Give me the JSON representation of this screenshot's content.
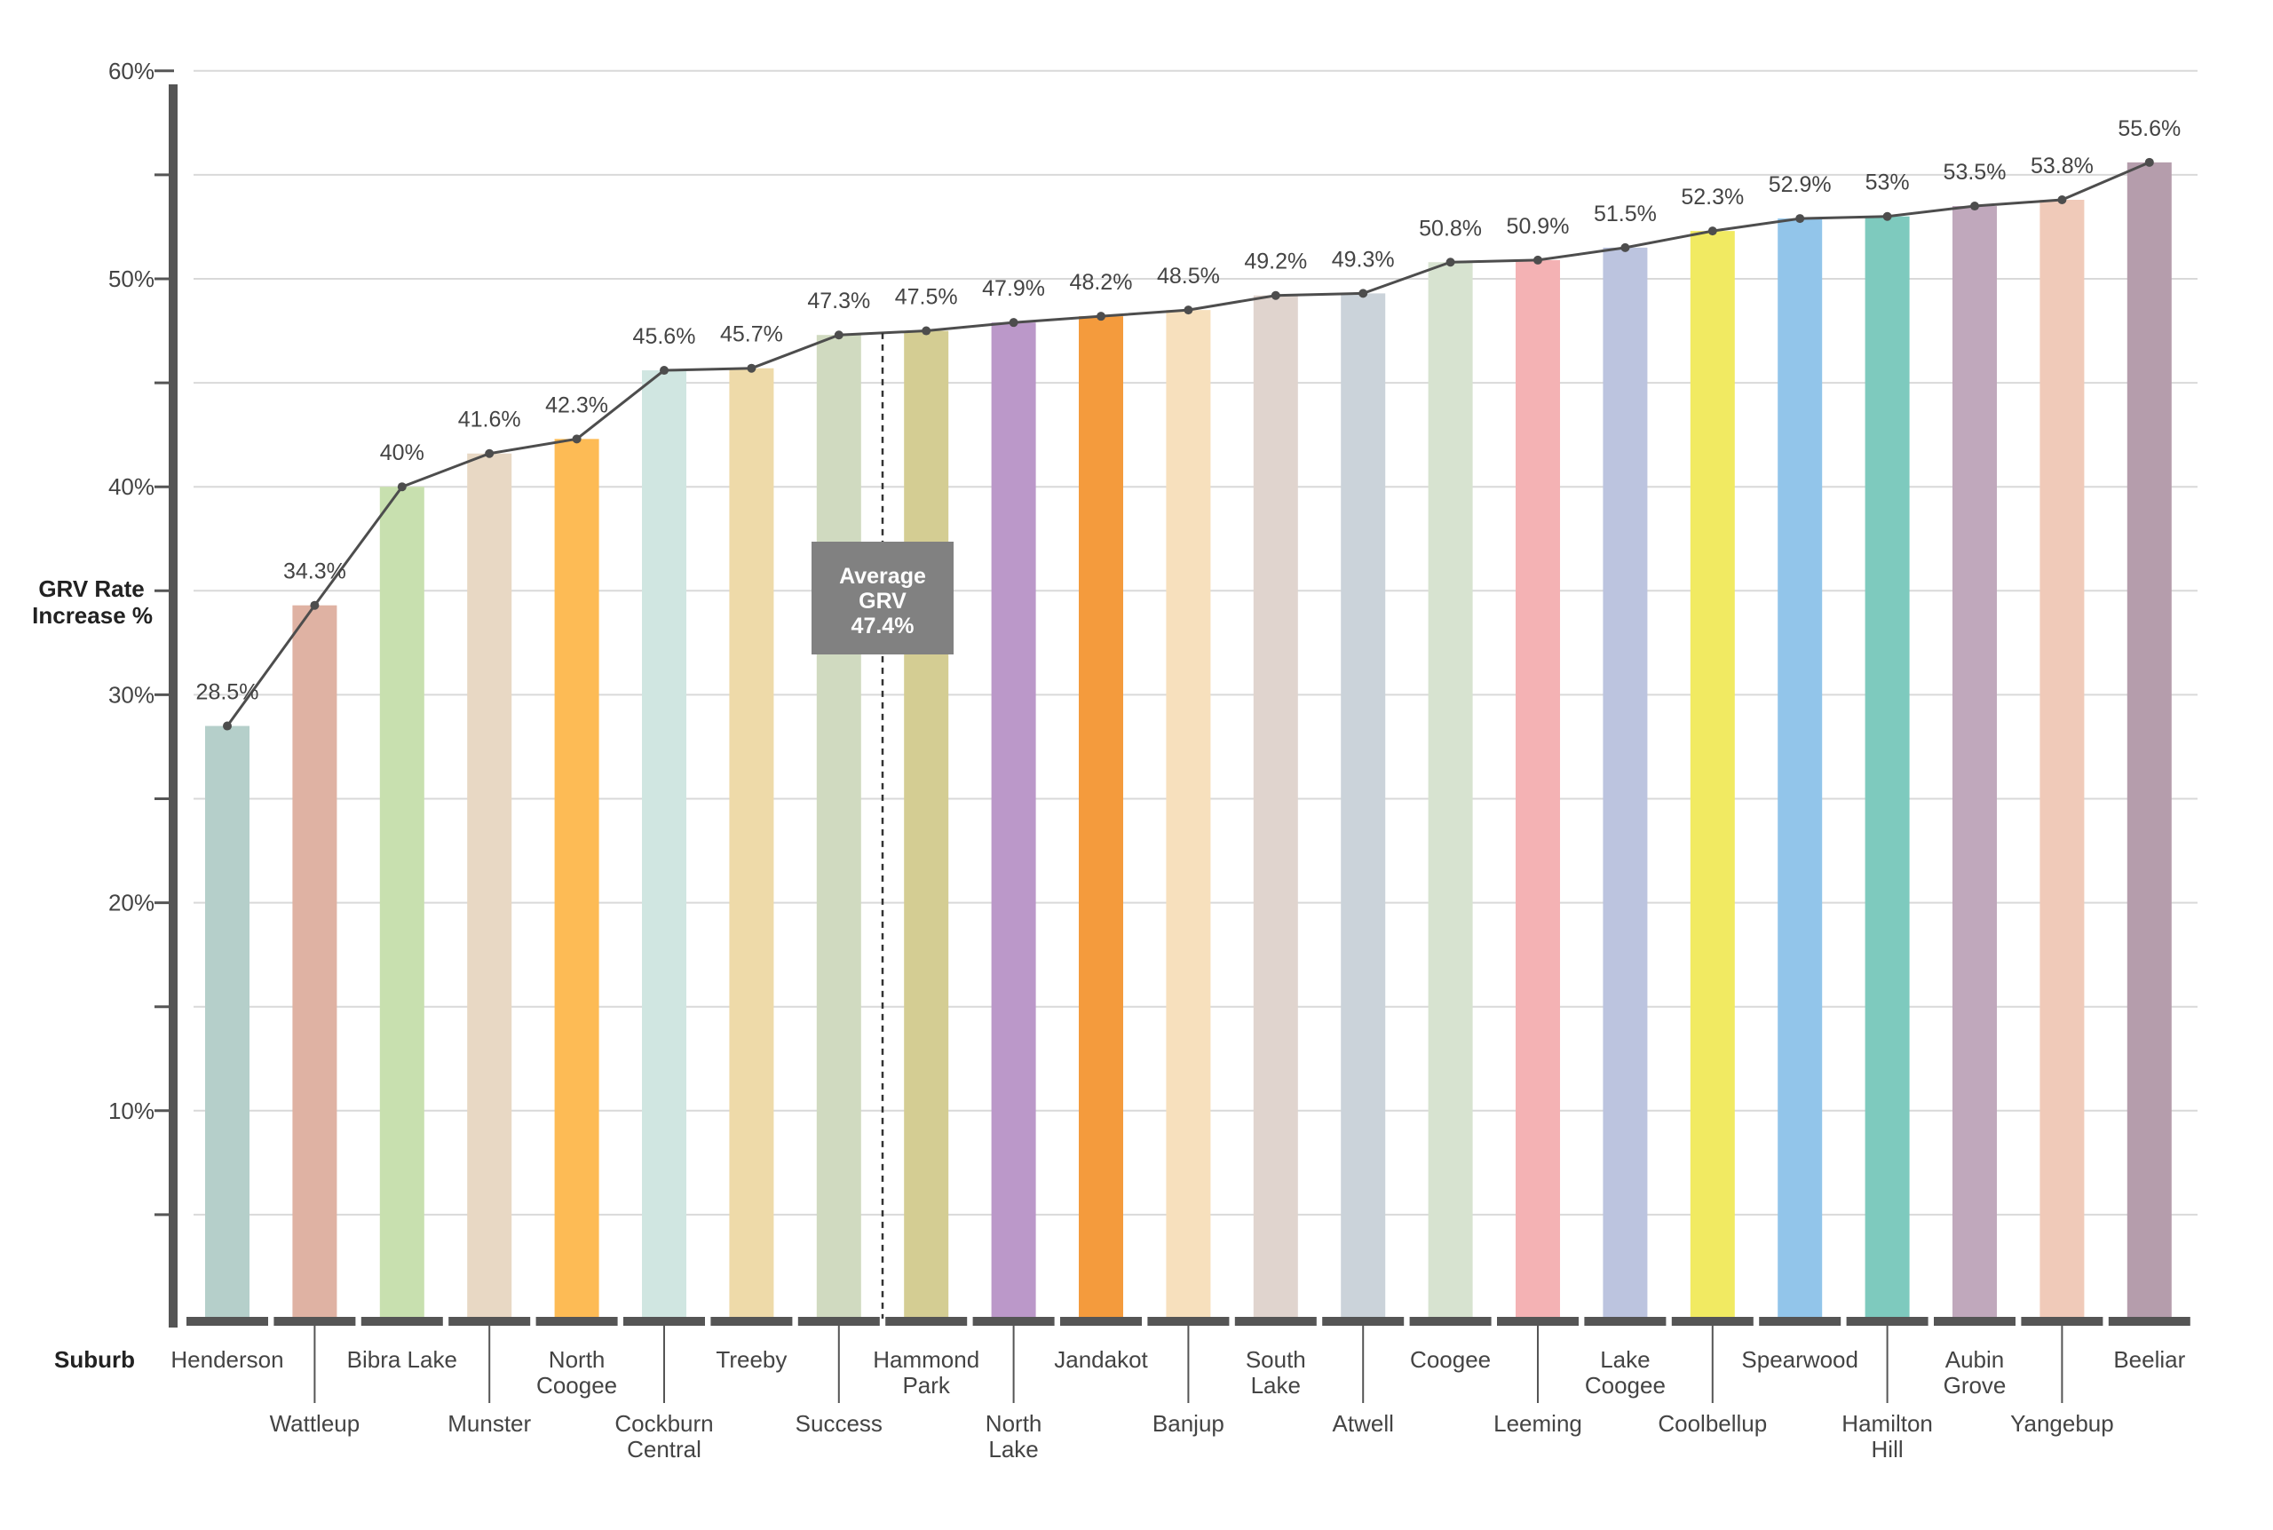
{
  "chart_data": {
    "type": "bar",
    "ylabel_lines": [
      "GRV Rate",
      "Increase %"
    ],
    "xlabel": "Suburb",
    "ylim": [
      0,
      60
    ],
    "yticks": [
      10,
      20,
      30,
      40,
      50,
      60
    ],
    "ytick_labels": [
      "10%",
      "20%",
      "30%",
      "40%",
      "50%",
      "60%"
    ],
    "grid": true,
    "categories": [
      "Henderson",
      "Wattleup",
      "Bibra Lake",
      "Munster",
      "North Coogee",
      "Cockburn Central",
      "Treeby",
      "Success",
      "Hammond Park",
      "North Lake",
      "Jandakot",
      "Banjup",
      "South Lake",
      "Atwell",
      "Coogee",
      "Leeming",
      "Lake Coogee",
      "Coolbellup",
      "Spearwood",
      "Hamilton Hill",
      "Aubin Grove",
      "Yangebup",
      "Beeliar"
    ],
    "category_label_lines": [
      [
        "Henderson"
      ],
      [
        "Wattleup"
      ],
      [
        "Bibra Lake"
      ],
      [
        "Munster"
      ],
      [
        "North",
        "Coogee"
      ],
      [
        "Cockburn",
        "Central"
      ],
      [
        "Treeby"
      ],
      [
        "Success"
      ],
      [
        "Hammond",
        "Park"
      ],
      [
        "North",
        "Lake"
      ],
      [
        "Jandakot"
      ],
      [
        "Banjup"
      ],
      [
        "South",
        "Lake"
      ],
      [
        "Atwell"
      ],
      [
        "Coogee"
      ],
      [
        "Leeming"
      ],
      [
        "Lake",
        "Coogee"
      ],
      [
        "Coolbellup"
      ],
      [
        "Spearwood"
      ],
      [
        "Hamilton",
        "Hill"
      ],
      [
        "Aubin",
        "Grove"
      ],
      [
        "Yangebup"
      ],
      [
        "Beeliar"
      ]
    ],
    "values": [
      28.5,
      34.3,
      40,
      41.6,
      42.3,
      45.6,
      45.7,
      47.3,
      47.5,
      47.9,
      48.2,
      48.5,
      49.2,
      49.3,
      50.8,
      50.9,
      51.5,
      52.3,
      52.9,
      53,
      53.5,
      53.8,
      55.6
    ],
    "value_labels": [
      "28.5%",
      "34.3%",
      "40%",
      "41.6%",
      "42.3%",
      "45.6%",
      "45.7%",
      "47.3%",
      "47.5%",
      "47.9%",
      "48.2%",
      "48.5%",
      "49.2%",
      "49.3%",
      "50.8%",
      "50.9%",
      "51.5%",
      "52.3%",
      "52.9%",
      "53%",
      "53.5%",
      "53.8%",
      "55.6%"
    ],
    "colors": [
      "#b5cfca",
      "#dfb2a3",
      "#c8e0af",
      "#e8d8c4",
      "#fdbb55",
      "#d0e6e1",
      "#eedaa9",
      "#d0dac0",
      "#d4cd93",
      "#bb98c9",
      "#f49b3d",
      "#f7e0bd",
      "#e0d4ce",
      "#cbd3da",
      "#d7e3d0",
      "#f4b2b4",
      "#bcc4df",
      "#f1ea62",
      "#92c5ea",
      "#7ecabe",
      "#c0a8bc",
      "#f0cab9",
      "#b59dac"
    ],
    "line_overlay": true,
    "average": {
      "value": 47.4,
      "label_lines": [
        "Average",
        "GRV",
        "47.4%"
      ]
    }
  }
}
